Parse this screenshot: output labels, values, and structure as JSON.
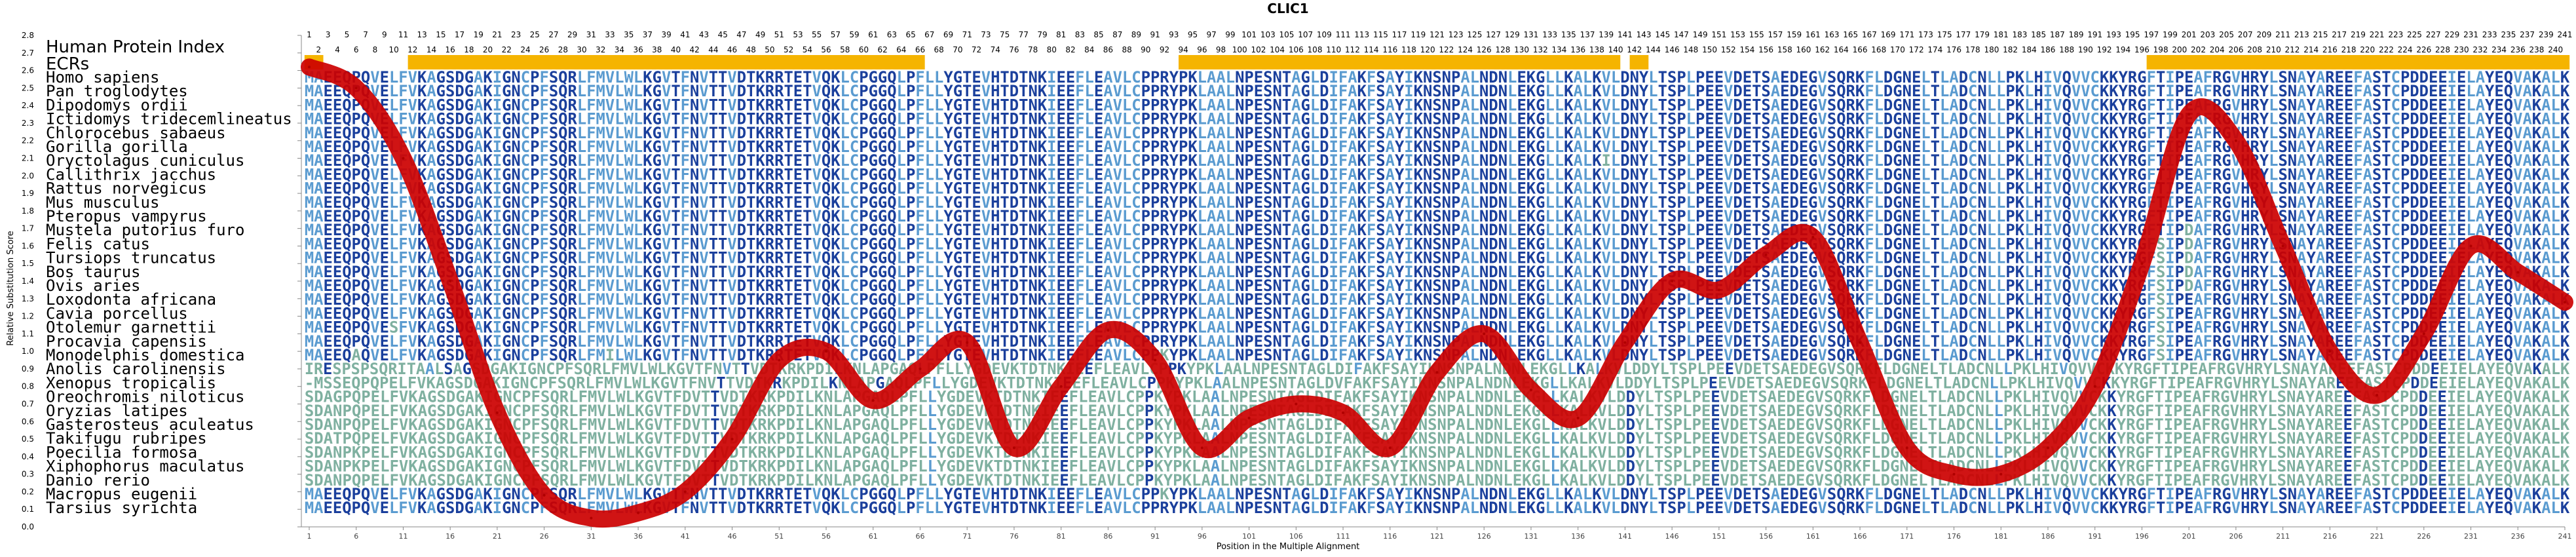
{
  "chart_data": {
    "type": "line",
    "title": "CLIC1",
    "xlabel": "Position in the Multiple Alignment",
    "ylabel": "Relative Substitution Score",
    "xlim": [
      1,
      241
    ],
    "ylim": [
      0.0,
      2.8
    ],
    "yticks": [
      "0.0",
      "0.1",
      "0.2",
      "0.3",
      "0.4",
      "0.5",
      "0.6",
      "0.7",
      "0.8",
      "0.9",
      "1.0",
      "1.1",
      "1.2",
      "1.3",
      "1.4",
      "1.5",
      "1.6",
      "1.7",
      "1.8",
      "1.9",
      "2.0",
      "2.1",
      "2.2",
      "2.3",
      "2.4",
      "2.5",
      "2.6",
      "2.7",
      "2.8"
    ],
    "xticks": [
      1,
      6,
      11,
      16,
      21,
      26,
      31,
      36,
      41,
      46,
      51,
      56,
      61,
      66,
      71,
      76,
      81,
      86,
      91,
      96,
      101,
      106,
      111,
      116,
      121,
      126,
      131,
      136,
      141,
      146,
      151,
      156,
      161,
      166,
      171,
      176,
      181,
      186,
      191,
      196,
      201,
      206,
      211,
      216,
      221,
      226,
      231,
      236,
      241
    ],
    "line_color": "#cc0000",
    "ecr_color": "#f5b400",
    "series": [
      {
        "name": "",
        "x": [
          1,
          6,
          11,
          16,
          21,
          26,
          31,
          36,
          41,
          46,
          51,
          56,
          61,
          66,
          71,
          76,
          81,
          86,
          91,
          96,
          101,
          106,
          111,
          116,
          121,
          126,
          131,
          136,
          141,
          146,
          151,
          156,
          161,
          166,
          171,
          176,
          181,
          186,
          191,
          196,
          201,
          206,
          211,
          216,
          221,
          226,
          231,
          236,
          241
        ],
        "y": [
          2.62,
          2.5,
          2.1,
          1.4,
          0.65,
          0.18,
          0.05,
          0.08,
          0.2,
          0.5,
          0.95,
          1.0,
          0.72,
          0.9,
          1.05,
          0.45,
          0.8,
          1.12,
          0.95,
          0.45,
          0.62,
          0.7,
          0.65,
          0.45,
          0.88,
          1.1,
          0.78,
          0.62,
          1.05,
          1.4,
          1.35,
          1.55,
          1.65,
          1.05,
          0.45,
          0.3,
          0.3,
          0.45,
          0.8,
          1.5,
          2.35,
          2.2,
          1.6,
          1.0,
          0.75,
          1.1,
          1.6,
          1.45,
          1.28
        ]
      }
    ]
  },
  "top_positions_row1": [
    1,
    3,
    5,
    7,
    9,
    11,
    13,
    15,
    17,
    19,
    21,
    23,
    25,
    27,
    29,
    31,
    33,
    35,
    37,
    39,
    41,
    43,
    45,
    47,
    49,
    51,
    53,
    55,
    57,
    59,
    61,
    63,
    65,
    67,
    69,
    71,
    73,
    75,
    77,
    79,
    81,
    83,
    85,
    87,
    89,
    91,
    93,
    95,
    97,
    99,
    101,
    103,
    105,
    107,
    109,
    111,
    113,
    115,
    117,
    119,
    121,
    123,
    125,
    127,
    129,
    131,
    133,
    135,
    137,
    139,
    141,
    143,
    145,
    147,
    149,
    151,
    153,
    155,
    157,
    159,
    161,
    163,
    165,
    167,
    169,
    171,
    173,
    175,
    177,
    179,
    181,
    183,
    185,
    187,
    189,
    191,
    193,
    195,
    197,
    199,
    201,
    203,
    205,
    207,
    209,
    211,
    213,
    215,
    217,
    219,
    221,
    223,
    225,
    227,
    229,
    231,
    233,
    235,
    237,
    239,
    241
  ],
  "top_positions_row2": [
    2,
    4,
    6,
    8,
    10,
    12,
    14,
    16,
    18,
    20,
    22,
    24,
    26,
    28,
    30,
    32,
    34,
    36,
    38,
    40,
    42,
    44,
    46,
    48,
    50,
    52,
    54,
    56,
    58,
    60,
    62,
    64,
    66,
    68,
    70,
    72,
    74,
    76,
    78,
    80,
    82,
    84,
    86,
    88,
    90,
    92,
    94,
    96,
    98,
    100,
    102,
    104,
    106,
    108,
    110,
    112,
    114,
    116,
    118,
    120,
    122,
    124,
    126,
    128,
    130,
    132,
    134,
    136,
    138,
    140,
    142,
    144,
    146,
    148,
    150,
    152,
    154,
    156,
    158,
    160,
    162,
    164,
    166,
    168,
    170,
    172,
    174,
    176,
    178,
    180,
    182,
    184,
    186,
    188,
    190,
    192,
    194,
    196,
    198,
    200,
    202,
    204,
    206,
    208,
    210,
    212,
    214,
    216,
    218,
    220,
    222,
    224,
    226,
    228,
    230,
    232,
    234,
    236,
    238,
    240
  ],
  "ecr_ranges": [
    [
      1,
      2
    ],
    [
      12,
      66
    ],
    [
      94,
      140
    ],
    [
      142,
      143
    ],
    [
      197,
      241
    ]
  ],
  "header_label": "Human Protein Index",
  "ecr_label": "ECRs",
  "species": [
    {
      "name": "Homo sapiens",
      "seq": "MAEEQPQVELFVKAGSDGAKIGNCPFSQRLFMVLWLKGVTFNVTTVDTKRRTETVQKLCPGGQLPFLLYGTEVHTDTNKIEEFLEAVLCPPRYPKLAALNPESNTAGLDIFAKFSAYIKNSNPALNDNLEKGLLKALKVLDNYLTSPLPEEVDETSAEDEGVSQRKFLDGNELTLADCNLLPKLHIVQVVCKKYRGFTIPEAFRGVHRYLSNAYAREEFASTCPDDEEIELAYEQVAKALK"
    },
    {
      "name": "Pan troglodytes",
      "seq": "MAEEQPQVELFVKAGSDGAKIGNCPFSQRLFMVLWLKGVTFNVTTVDTKRRTETVQKLCPGGQLPFLLYGTEVHTDTNKIEEFLEAVLCPPRYPKLAALNPESNTAGLDIFAKFSAYIKNSNPALNDNLEKGLLKALKVLDNYLTSPLPEEVDETSAEDEGVSQRKFLDGNELTLADCNLLPKLHIVQVVCKKYRGFTIPEAFRGVHRYLSNAYAREEFASTCPDDEEIELAYEQVAKALK"
    },
    {
      "name": "Dipodomys ordii",
      "seq": "MAEEQPQVELFVKAGSDGAKIGNCPFSQRLFMVLWLKGVTFNVTTVDTKRRTETVQKLCPGGQLPFLLYGTEVHTDTNKIEEFLEAVLCPPRYPKLAALNPESNTAGLDIFAKFSAYIKNSNPALNDNLEKGLLKALKVLDNYLTSPLPEEVDETSAEDEGVSQRKFLDGNELTLADCNLLPKLHIVQVVCKKYRGFTIPEAFRGVHRYLSNAYAREEFASTCPDDEEIELAYEQVAKALK"
    },
    {
      "name": "Ictidomys tridecemlineatus",
      "seq": "MAEEQPQVELFVKAGSDGAKIGNCPFSQRLFMVLWLKGVTFNVTTVDTKRRTETVQKLCPGGQLPFLLYGTEVHTDTNKIEEFLEAVLCPPRYPKLAALNPESNTAGLDIFAKFSAYIKNSNPALNDNLEKGLLKALKVLDNYLTSPLPEEVDETSAEDEGVSQRKFLDGNELTLADCNLLPKLHIVQVVCKKYRGFTIPEAFRGVHRYLSNAYAREEFASTCPDDEEIELAYEQVAKALK"
    },
    {
      "name": "Chlorocebus sabaeus",
      "seq": "MAEEQPQVELFVKAGSDGAKIGNCPFSQRLFMVLWLKGVTFNVTTVDTKRRTETVQKLCPGGQLPFLLYGTEVHTDTNKIEEFLEAVLCPPRYPKLAALNPESNTAGLDIFAKFSAYIKNSNPALNDNLEKGLLKALKVLDNYLTSPLPEEVDETSAEDEGVSQRKFLDGNELTLADCNLLPKLHIVQVVCKKYRGFTIPEAFRGVHRYLSNAYAREEFASTCPDDEEIELAYEQVAKALK"
    },
    {
      "name": "Gorilla gorilla",
      "seq": "MAEEQPQVELFVKAGSDGAKIGNCPFSQRLFMVLWLKGVTFNVTTVDTKRRTETVQKLCPGGQLPFLLYGTEVHTDTNKIEEFLEAVLCPPRYPKLAALNPESNTAGLDIFAKFSAYIKNSNPALNDNLEKGLLKALKVLDNYLTSPLPEEVDETSAEDEGVSQRKFLDGNELTLADCNLLPKLHIVQVVCKKYRGFTIPEAFRGVHRYLSNAYAREEFASTCPDDEEIELAYEQVAKALK"
    },
    {
      "name": "Oryctolagus cuniculus",
      "seq": "MAEEQPQVELFVKAGSDGAKIGNCPFSQRLFMVLWLKGVTFNVTTVDTKRRTETVQKLCPGGQLPFLLYGTEVHTDTNKIEEFLEAVLCPPRYPKLAALNPESNTAGLDIFAKFSAYIKNSNPALNDNLEKGLLKALKILDNYLTSPLPEEVDETSAEDEGVSQRKFLDGNELTLADCNLLPKLHIVQVVCKKYRGFTIPEAFRGVHRYLSNAYAREEFASTCPDDEEIELAYEQVAKALK"
    },
    {
      "name": "Callithrix jacchus",
      "seq": "MAEEQPQVELFVKAGSDGAKIGNCPFSQRLFMVLWLKGVTFNVTTVDTKRRTETVQKLCPGGQLPFLLYGTEVHTDTNKIEEFLEAVLCPPRYPKLAALNPESNTAGLDIFAKFSAYIKNSNPALNDNLEKGLLKALKVLDNYLTSPLPEEVDETSAEDEGVSQRKFLDGNELTLADCNLLPKLHIVQVVCKKYRGFTIPEAFRGVHRYLSNAYAREEFASTCPDDEEIELAYEQVAKALK"
    },
    {
      "name": "Rattus norvegicus",
      "seq": "MAEEQPQVELFVKAGSDGAKIGNCPFSQRLFMVLWLKGVTFNVTTVDTKRRTETVQKLCPGGQLPFLLYGTEVHTDTNKIEEFLEAVLCPPRYPKLAALNPESNTAGLDIFAKFSAYIKNSNPALNDNLEKGLLKALKVLDNYLTSPLPEEVDETSAEDEGVSQRKFLDGNELTLADCNLLPKLHIVQVVCKKYRGFTIPEAFRGVHRYLSNAYAREEFASTCPDDEEIELAYEQVAKALK"
    },
    {
      "name": "Mus musculus",
      "seq": "MAEEQPQVELFVKAGSDGAKIGNCPFSQRLFMVLWLKGVTFNVTTVDTKRRTETVQKLCPGGQLPFLLYGTEVHTDTNKIEEFLEAVLCPPRYPKLAALNPESNTAGLDIFAKFSAYIKNSNPALNDNLEKGLLKALKVLDNYLTSPLPEEVDETSAEDEGVSQRKFLDGNELTLADCNLLPKLHIVQVVCKKYRGFTIPEAFRGVHRYLSNAYAREEFASTCPDDEEIELAYEQVAKALK"
    },
    {
      "name": "Pteropus vampyrus",
      "seq": "MAEEQPQVELFVKAGSDGAKIGNCPFSQRLFMVLWLKGVTFNVTTVDTKRRTETVQKLCPGGQLPFLLYGTEVHTDTNKIEEFLEAVLCPPRYPKLAALNPESNTAGLDIFAKFSAYIKNSNPALNDNLEKGLLKALKVLDNYLTSPLPEEVDETSAEDEGVSQRKFLDGNELTLADCNLLPKLHIVQVVCKKYRGFTIPEAFRGVHRYLSNAYAREEFASTCPDDEEIELAYEQVAKALK"
    },
    {
      "name": "Mustela putorius furo",
      "seq": "MAEEQPQVELFVKAGSDGAKIGNCPFSQRLFMVLWLKGVTFNVTTVDTKRRTETVQKLCPGGQLPFLLYGTEVHTDTNKIEEFLEAVLCPPRYPKLAALNPESNTAGLDIFAKFSAYIKNSNPALNDNLEKGLLKALKVLDNYLTSPLPEEVDETSAEDEGVSQRKFLDGNELTLADCNLLPKLHIVQVVCKKYRGFTIPDAFRGVHRYLSNAYAREEFASTCPDDEEIELAYEQVAKALK"
    },
    {
      "name": "Felis catus",
      "seq": "MAEEQPQVELFVKAGSDGAKIGNCPFSQRLFMVLWLKGVTFNVTTVDTKRRTETVQKLCPGGQLPFLLYGTEVHTDTNKIEEFLEAVLCPPRYPKLAALNPESNTAGLDIFAKFSAYIKNSNPALNDNLEKGLLKALKVLDNYLTSPLPEEVDETSAEDEGVSQRKFLDGNELTLADCNLLPKLHIVQVVCKKYRGFSIPDAFRGVHRYLSNAYAREEFASTCPDDEEIELAYEQVAKALK"
    },
    {
      "name": "Tursiops truncatus",
      "seq": "MAEEQPQVELFVKAGSDGAKIGNCPFSQRLFMVLWLKGVTFNVTTVDTKRRTETVQKLCPGGQLPFLLYGTEVHTDTNKIEEFLEAVLCPPRYPKLAALNPESNTAGLDIFAKFSAYIKNSNPALNDNLEKGLLKALKVLDNYLTSPLPEEVDETSAEDEGVSQRKFLDGNELTLADCNLLPKLHIVQVVCKKYRGFSIPDAFRGVHRYLSNAYAREEFASTCPDDEEIELAYEQVAKALK"
    },
    {
      "name": "Bos taurus",
      "seq": "MAEEQPQVELFVKAGSDGAKIGNCPFSQRLFMVLWLKGVTFNVTTVDTKRRTETVQKLCPGGQLPFLLYGTEVHTDTNKIEEFLEAVLCPPRYPKLAALNPESNTAGLDIFAKFSAYIKNSNPALNDNLEKGLLKALKVLDNYLTSPLPEEVDETSAEDEGVSQRKFLDGNELTLADCNLLPKLHIVQVVCKKYRGFSIPDAFRGVHRYLSNAYAREEFASTCPDDEEIELAYEQVAKALK"
    },
    {
      "name": "Ovis aries",
      "seq": "MAEEQPQVELFVKAGSDGAKIGNCPFSQRLFMVLWLKGVTFNVTTVDTKRRTETVQKLCPGGQLPFLLYGTEVHTDTNKIEEFLEAVLCPPRYPKLAALNPESNTAGLDIFAKFSAYIKNSNPALNDNLEKGLLKALKVLDNYLTSPLPEEVDETSAEDEGVSQRKFLDGNELTLADCNLLPKLHIVQVVCKKYRGFSIPDAFRGVHRYLSNAYAREEFASTCPDDEEIELAYEQVAKALK"
    },
    {
      "name": "Loxodonta africana",
      "seq": "MAEEQPQVELFVKAGSDGAKIGNCPFSQRLFMVLWLKGVTFNVTTVDTKRRTETVQKLCPGGQLPFLLYGTEVHTDTNKIEEFLEAVLCPPRYPKLAALNPESNTAGLDIFAKFSAYIKNSNPALNDNLEKGLLKALKVLDNYLTSPLPEEVDETSAEDEGVSQRKFLDGNELTLADCNLLPKLHIVQVVCKKYRGFSIPEAFRGVHRYLSNAYAREEFASTCPDDEEIELAYEQVAKALK"
    },
    {
      "name": "Cavia porcellus",
      "seq": "MAEEQPQVELFVKAGSDGAKIGNCPFSQRLFMVLWLKGVTFNVTTVDTKRRTETVQKLCPGGQLPFLLYGTEVHTDTNKIEEFLEAVLCPPRYPKLAALNPESNTAGLDIFAKFSAYIKNSNPALNDNLEKGLLKALKVLDNYLTSPLPEEVDETSAEDEGVSQRKFLDGNELTLADCNLLPKLHIVQVVCKKYRGFSIPEAFRGVHRYLSNAYAREEFASTCPDDEEIELAYEQVAKALK"
    },
    {
      "name": "Otolemur garnettii",
      "seq": "MAEEQPQVESFVKAGSDGAKIGNCPFSQRLFMVLWLKGVTFNVTTVDTKRRTETVQKLCPGGQLPFLLYGTEVHTDTNKIEEFLEAVLCPPRYPKLAALNPESNTAGLDIFAKFSAYIKNSNPALNDNLEKGLLKALKVLDNYLTSPLPEEVDETSAEDEGVSQRKFLDGNELTLADCNLLPKLHIVQVVCKKYRGFSIPEAFRGVHRYLSNAYAREEFASTCPDDEEIELAYEQVAKALK"
    },
    {
      "name": "Procavia capensis",
      "seq": "MAEEQPQVELFVKAGSDGAKIGNCPFSQRLFMVLWLKGVTFNVTTVDTKRRTETVQKLCPGGQLPFLLYGTEVHTDTNKIEEFLEAVLCPPRYPKLAALNPESNTAGLDIFAKFSAYIKNSNPALNDNLEKGLLKALKVLDNYLTSPLPEEVDETSAEDEGVSQRKFLDGNELTLADCNLLPKLHIVQVVCKKYRGFSIPEAFRGVHRYLSNAYAREEFASTCPDDEEIELAYEQVAKALK"
    },
    {
      "name": "Monodelphis domestica",
      "seq": "MAEEQAQVELFVKAGSDGAKIGNCPFSQRLFMILWLKGVTFNVTTVDTKRRTETVQKLCPGGQLPFLLYGTEVHTDTNKIEEFLEAVLCPPKYPKLAALNPESNTAGLDIFAKFSAYIKNSNPALNDNLEKGLLKALKVLDNYLTSPLPEEVDETSAEDEGVSQRKFLDGNELTLADCNLLPKLHIVQVVCKKYRGFSIPEAFRGVHRYLSNAYAREEFASTCPDDEEIELAYEQVAKALK"
    },
    {
      "name": "Anolis carolinensis",
      "seq": "IRESPSPSQRITAALSAGSDGAKIGNCPFSQRLFMVLWLKGVTFNVTTVDTKRKPDILKNLAPGAQLPFLLYGDEVKTDTNKIEEFLEAVLCPPKYPKLAALNPESNTAGLDIFAKFSAYIKNSNPALNDNLEKGLLKALKVLDDYLTSPLPEEVDETSAEDEGVSQRKFLDGNELTLADCNLLPKLHIVQVVCKKYRGFTIPEAFRGVHRYLSNAYAREEFASTCPDDEEIELAYEQVAKALK"
    },
    {
      "name": "Xenopus tropicalis",
      "seq": "-MSSEQPQPELFVKAGSDGAKIGNCPFSQRLFMVLWLKGVTFNVTTVDTKRKPDILKNLAPGAQLPFLLYGDEVKTDTNKIEEFLEAVLCPPKYPKLAALNPESNTAGLDVFAKFSAYIKNSNPALNDNLEKGLLKALKVLDDYLTSPLPEEVDETSAEDEGVSQRKFLDGNELTLADCNLLPKLHIVQVVCKKYRGFTIPEAFRGVHRYLSNAYAREEFASTCPDDEEIELAYEQVAKALK"
    },
    {
      "name": "Oreochromis niloticus",
      "seq": "SDAGPQPELFVKAGSDGAKIGNCPFSQRLFMVLWLKGVTFDVTTVDTKRKPDILKNLAPGAQLPFLLYGDEVKTDTNKIEEFLEAVLCPPKYPKLAALNPESNTAGLDIFAKFSAYIKNSNPALNDNLEKGLLKALKVLDDYLTSPLPEEVDETSAEDEGVSQRKFLDGNELTLADCNLLPKLHIVQVVCKKYRGFTIPEAFRGVHRYLSNAYAREEFASTCPDDEEIELAYEQVAKALK"
    },
    {
      "name": "Oryzias latipes",
      "seq": "SDANPQPELFVKAGSDGAKIGNCPFSQRLFMVLWLKGVTFDVTTVDTKRKPDILKNLAPGAQLPFLLYGDEVKTDTNKIEEFLEAVLCPPKYPKLAALNPESNTAGLDIFAKFSAYIKNSNPALNDNLEKGLLKALKVLDDYLTSPLPEEVDETSAEDEGVSQRKFLDGNELTLADCNLLPKLHIVQVVCKKYRGFTIPEAFRGVHRYLSNAYAREEFASTCPDDEEIELAYEQVAKALK"
    },
    {
      "name": "Gasterosteus aculeatus",
      "seq": "SDANPQPELFVKAGSDGAKIGNCPFSQRLFMVLWLKGVTFDVTTVDTKRKPDILKNLAPGAQLPFLLYGDEVKTDTNKIEEFLEAVLCPPKYPKLAALNPESNTAGLDIFAKFSAYIKNSNPALNDNLEKGLLKALKVLDDYLTSPLPEEVDETSAEDEGVSQRKFLDGNELTLADCNLLPKLHIVQVVCKKYRGFTIPEAFRGVHRYLSNAYAREEFASTCPDDEEIELAYEQVAKALK"
    },
    {
      "name": "Takifugu rubripes",
      "seq": "SDATPQPELFVKAGSDGAKIGNCPFSQRLFMVLWLKGVTFDVTTVDTKRKPDILKNLAPGAQLPFLLYGDEVKTDTNKIEEFLEAVLCPPKYPKLAALNPESNTAGLDIFAKFSAYIKNSNPALNDNLEKGLLKALKVLDDYLTSPLPEEVDETSAEDEGVSQRKFLDGNELTLADCNLLPKLHIVQVVCKKYRGFTIPEAFRGVHRYLSNAYAREEFASTCPDDEEIELAYEQVAKALK"
    },
    {
      "name": "Poecilia formosa",
      "seq": "SDANPKPELFVKAGSDGAKIGNCPFSQRLFMVLWLKGVTFDVTTVDTKRKPDILKNLAPGAQLPFLLYGDEVKTDTNKIEEFLEAVLCPPKYPKLAALNPESNTAGLDIFAKFSAYIKNSNPALNDNLEKGLLKALKVLDDYLTSPLPEEVDETSAEDEGVSQRKFLDGNELTLADCNLLPKLHIVQVVCKKYRGFTIPEAFRGVHRYLSNAYAREEFASTCPDDEEIELAYEQVAKALK"
    },
    {
      "name": "Xiphophorus maculatus",
      "seq": "SDANPKPELFVKAGSDGAKIGNCPFSQRLFMVLWLKGVTFDVTTVDTKRKPDILKNLAPGAQLPFLLYGDEVKTDTNKIEEFLEAVLCPPKYPKLAALNPESNTAGLDIFAKFSAYIKNSNPALNDNLEKGLLKALKVLDDYLTSPLPEEVDETSAEDEGVSQRKFLDGNELTLADCNLLPKLHIVQVVCKKYRGFTIPEAFRGVHRYLSNAYAREEFASTCPDDEEIELAYEQVAKALK"
    },
    {
      "name": "Danio rerio",
      "seq": "SDANPQPELFVKAGSDGAKIGNCPFSQRLFMVLWLKGVTFDVTTVDTKRKPDILKNLAPGAQLPFLLYGDEVKTDTNKIEEFLEAVLCPPKYPKLAALNPESNTAGLDIFAKFSAYIKNSNPALNDNLEKGLLKALKVLDDYLTSPLPEEVDETSAEDEGVSQRKFLDGNELTLADCNLLPKLHIVQVVCKKYRGFTIPEAFRGVHRYLSNAYAREEFASTCPDDEEIELAYEQVAKALK"
    },
    {
      "name": "Macropus eugenii",
      "seq": "MAEEQPQVELFVKAGSDGAKIGNCPFSQRLFMVLWLKGVTFNVTTVDTKRRTETVQKLCPGGQLPFLLYGTEVHTDTNKIEEFLEAVLCPPKYPKLAALNPESNTAGLDIFAKFSAYIKNSNPALNDNLEKGLLKALKVLDNYLTSPLPEEVDETSAEDEGVSQRKFLDGNELTLADCNLLPKLHIVQVVCKKYRGFTIPEAFRGVHRYLSNAYAREEFASTCPDDEEIELAYEQVAKALK"
    },
    {
      "name": "Tarsius syrichta",
      "seq": "MAEEQPQVELFVKAGSDGAKIGNCPFSQRLFMVLWLKGVTFNVTTVDTKRRTETVQKLCPGGQLPFLLYGTEVHTDTNKIEEFLEAVLCPPRYPKLAALNPESNTAGLDIFAKFSAYIKNSNPALNDNLEKGLLKALKVLDNYLTSPLPEEVDETSAEDEGVSQRKFLDGNELTLADCNLLPKLHIVQVVCKKYRGFTIPEAFRGVHRYLSNAYAREEFASTCPDDEEIELAYEQVAKALK"
    }
  ],
  "colors": {
    "conserved": "#1a3f9c",
    "variable": "#5a9bd0",
    "semi": "#7fb0a0",
    "line": "#cc0000",
    "ecr": "#f5b400"
  }
}
